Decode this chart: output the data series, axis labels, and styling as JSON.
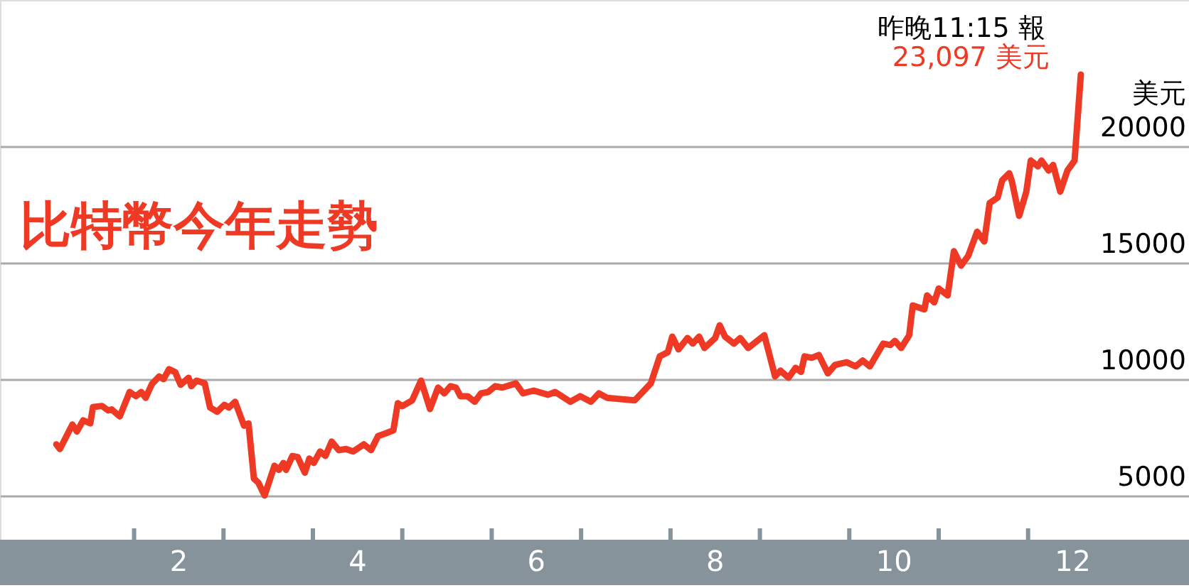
{
  "chart_data": {
    "type": "line",
    "title": "比特幣今年走勢",
    "ylabel": "美元",
    "annotations": [
      "昨晚11:15 報",
      {
        "text": "23,097 美元",
        "x": 12.59,
        "y": 23097
      }
    ],
    "x": [
      1.13,
      1.17,
      1.31,
      1.36,
      1.43,
      1.51,
      1.54,
      1.64,
      1.71,
      1.75,
      1.84,
      1.95,
      2.02,
      2.08,
      2.13,
      2.2,
      2.28,
      2.33,
      2.39,
      2.46,
      2.52,
      2.61,
      2.64,
      2.7,
      2.79,
      2.85,
      2.93,
      3.01,
      3.06,
      3.13,
      3.23,
      3.28,
      3.34,
      3.39,
      3.46,
      3.57,
      3.62,
      3.67,
      3.7,
      3.77,
      3.83,
      3.91,
      3.96,
      4.01,
      4.08,
      4.14,
      4.21,
      4.29,
      4.37,
      4.45,
      4.57,
      4.65,
      4.73,
      4.82,
      4.9,
      4.95,
      5.0,
      5.11,
      5.21,
      5.31,
      5.4,
      5.47,
      5.54,
      5.6,
      5.65,
      5.73,
      5.81,
      5.88,
      5.96,
      6.04,
      6.12,
      6.27,
      6.35,
      6.47,
      6.63,
      6.71,
      6.88,
      6.99,
      7.11,
      7.2,
      7.29,
      7.6,
      7.78,
      7.88,
      7.97,
      8.02,
      8.09,
      8.19,
      8.25,
      8.32,
      8.38,
      8.5,
      8.55,
      8.61,
      8.71,
      8.78,
      8.87,
      9.05,
      9.17,
      9.23,
      9.32,
      9.4,
      9.46,
      9.5,
      9.58,
      9.66,
      9.76,
      9.84,
      9.97,
      10.07,
      10.15,
      10.23,
      10.38,
      10.46,
      10.51,
      10.58,
      10.67,
      10.71,
      10.84,
      10.87,
      10.95,
      11.0,
      11.1,
      11.17,
      11.25,
      11.33,
      11.43,
      11.51,
      11.57,
      11.66,
      11.71,
      11.79,
      11.82,
      11.9,
      11.98,
      12.03,
      12.11,
      12.15,
      12.23,
      12.28,
      12.36,
      12.44,
      12.52,
      12.59
    ],
    "series": [
      {
        "color": "#ee3a24",
        "values": [
          7200,
          7000,
          8050,
          7750,
          8230,
          8100,
          8800,
          8850,
          8660,
          8700,
          8400,
          9450,
          9270,
          9450,
          9200,
          9800,
          10120,
          10000,
          10430,
          10300,
          9760,
          10060,
          9700,
          9940,
          9820,
          8780,
          8600,
          8900,
          8780,
          9030,
          8000,
          8100,
          5730,
          5550,
          5000,
          6280,
          6100,
          6400,
          6100,
          6700,
          6650,
          5980,
          6590,
          6400,
          6890,
          6700,
          7320,
          6950,
          7000,
          6890,
          7200,
          6950,
          7560,
          7680,
          7800,
          8970,
          8840,
          9090,
          9940,
          8720,
          9640,
          9390,
          9700,
          9640,
          9270,
          9270,
          9030,
          9390,
          9450,
          9700,
          9640,
          9820,
          9390,
          9510,
          9330,
          9450,
          9030,
          9270,
          9030,
          9390,
          9200,
          9090,
          9820,
          10980,
          11160,
          11830,
          11280,
          11770,
          11530,
          11830,
          11340,
          11770,
          12320,
          11830,
          11530,
          11770,
          11340,
          11890,
          10120,
          10370,
          10060,
          10490,
          10310,
          10980,
          10920,
          11040,
          10250,
          10610,
          10730,
          10550,
          10800,
          10550,
          11530,
          11470,
          11650,
          11340,
          11890,
          13170,
          13000,
          13600,
          13300,
          13900,
          13600,
          15500,
          14880,
          15300,
          16340,
          15920,
          17570,
          17810,
          18550,
          18850,
          18490,
          17020,
          18060,
          19400,
          19150,
          19400,
          18970,
          19210,
          18060,
          18970,
          19400,
          23097
        ]
      }
    ],
    "xlim": [
      0.5,
      13.8
    ],
    "ylim": [
      3100,
      26300
    ],
    "xticks": [
      {
        "value": 2,
        "label": null
      },
      {
        "value": 3,
        "label": null
      },
      {
        "value": 4,
        "label": null
      },
      {
        "value": 5,
        "label": null
      },
      {
        "value": 6,
        "label": null
      },
      {
        "value": 7,
        "label": null
      },
      {
        "value": 8,
        "label": null
      },
      {
        "value": 9,
        "label": null
      },
      {
        "value": 10,
        "label": null
      },
      {
        "value": 11,
        "label": null
      },
      {
        "value": 12,
        "label": null
      },
      {
        "value": 2.5,
        "label": "2"
      },
      {
        "value": 4.5,
        "label": "4"
      },
      {
        "value": 6.5,
        "label": "6"
      },
      {
        "value": 8.5,
        "label": "8"
      },
      {
        "value": 10.5,
        "label": "10"
      },
      {
        "value": 12.5,
        "label": "12"
      }
    ],
    "yticks": [
      5000,
      10000,
      15000,
      20000
    ],
    "grid": "y",
    "line_style": "solid"
  }
}
